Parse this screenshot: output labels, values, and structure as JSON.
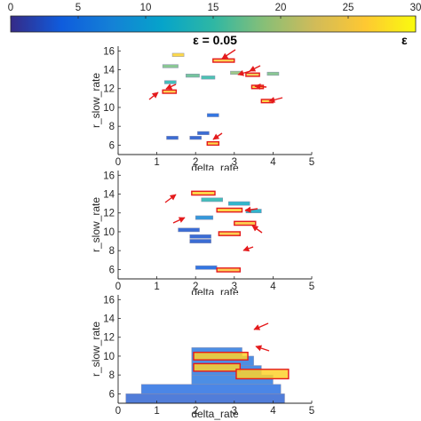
{
  "figure": {
    "colorbar": {
      "ticks": [
        "0",
        "5",
        "10",
        "15",
        "20",
        "25",
        "30"
      ],
      "range": [
        0,
        30
      ],
      "colormap": "parula"
    },
    "titles": [
      "ε = 0.05",
      "ε"
    ],
    "highlight_color": "#e41a1c"
  },
  "chart_data": [
    {
      "type": "heatmap",
      "panel": "row1-col2",
      "title": "ε = 0.05",
      "xlabel": "delta_rate",
      "ylabel": "r_slow_rate",
      "xlim": [
        0,
        5
      ],
      "ylim": [
        5,
        16.5
      ],
      "xticks": [
        "0",
        "1",
        "2",
        "3",
        "4",
        "5"
      ],
      "yticks": [
        "6",
        "8",
        "10",
        "12",
        "14",
        "16"
      ],
      "cells": [
        {
          "x": 1.4,
          "y": 15.4,
          "w": 0.3,
          "h": 0.35,
          "value": 27,
          "highlight": false
        },
        {
          "x": 2.45,
          "y": 14.8,
          "w": 0.55,
          "h": 0.35,
          "value": 26,
          "highlight": true
        },
        {
          "x": 1.15,
          "y": 14.2,
          "w": 0.4,
          "h": 0.35,
          "value": 18,
          "highlight": false
        },
        {
          "x": 1.75,
          "y": 13.2,
          "w": 0.35,
          "h": 0.35,
          "value": 17,
          "highlight": false
        },
        {
          "x": 2.15,
          "y": 13.0,
          "w": 0.35,
          "h": 0.35,
          "value": 15,
          "highlight": false
        },
        {
          "x": 2.9,
          "y": 13.5,
          "w": 0.3,
          "h": 0.35,
          "value": 19,
          "highlight": false
        },
        {
          "x": 3.3,
          "y": 13.3,
          "w": 0.35,
          "h": 0.35,
          "value": 25,
          "highlight": true
        },
        {
          "x": 3.85,
          "y": 13.4,
          "w": 0.3,
          "h": 0.35,
          "value": 18,
          "highlight": false
        },
        {
          "x": 1.2,
          "y": 12.5,
          "w": 0.3,
          "h": 0.35,
          "value": 14,
          "highlight": false
        },
        {
          "x": 3.45,
          "y": 12.0,
          "w": 0.3,
          "h": 0.35,
          "value": 27,
          "highlight": true
        },
        {
          "x": 1.15,
          "y": 11.5,
          "w": 0.35,
          "h": 0.35,
          "value": 26,
          "highlight": true
        },
        {
          "x": 3.7,
          "y": 10.5,
          "w": 0.3,
          "h": 0.35,
          "value": 27,
          "highlight": true
        },
        {
          "x": 2.3,
          "y": 9.0,
          "w": 0.3,
          "h": 0.35,
          "value": 4,
          "highlight": false
        },
        {
          "x": 1.25,
          "y": 6.6,
          "w": 0.3,
          "h": 0.35,
          "value": 3,
          "highlight": false
        },
        {
          "x": 1.85,
          "y": 6.6,
          "w": 0.3,
          "h": 0.35,
          "value": 3,
          "highlight": false
        },
        {
          "x": 2.05,
          "y": 7.1,
          "w": 0.3,
          "h": 0.35,
          "value": 3,
          "highlight": false
        },
        {
          "x": 2.3,
          "y": 6.0,
          "w": 0.3,
          "h": 0.35,
          "value": 27,
          "highlight": true
        }
      ],
      "arrows": 8
    },
    {
      "type": "heatmap",
      "panel": "row2-col2",
      "xlabel": "delta_rate",
      "ylabel": "r_slow_rate",
      "xlim": [
        0,
        5
      ],
      "ylim": [
        5,
        16.5
      ],
      "xticks": [
        "0",
        "1",
        "2",
        "3",
        "4",
        "5"
      ],
      "yticks": [
        "6",
        "8",
        "10",
        "12",
        "14",
        "16"
      ],
      "cells": [
        {
          "x": 1.9,
          "y": 13.9,
          "w": 0.6,
          "h": 0.4,
          "value": 27,
          "highlight": true
        },
        {
          "x": 2.15,
          "y": 13.2,
          "w": 0.55,
          "h": 0.4,
          "value": 14,
          "highlight": false
        },
        {
          "x": 2.85,
          "y": 12.8,
          "w": 0.55,
          "h": 0.4,
          "value": 12,
          "highlight": false
        },
        {
          "x": 2.55,
          "y": 12.1,
          "w": 0.65,
          "h": 0.4,
          "value": 27,
          "highlight": true
        },
        {
          "x": 3.3,
          "y": 12.0,
          "w": 0.4,
          "h": 0.4,
          "value": 12,
          "highlight": false
        },
        {
          "x": 2.0,
          "y": 11.3,
          "w": 0.45,
          "h": 0.4,
          "value": 8,
          "highlight": false
        },
        {
          "x": 3.0,
          "y": 10.7,
          "w": 0.55,
          "h": 0.4,
          "value": 26,
          "highlight": true
        },
        {
          "x": 1.55,
          "y": 10.0,
          "w": 0.55,
          "h": 0.4,
          "value": 3,
          "highlight": false
        },
        {
          "x": 2.6,
          "y": 9.6,
          "w": 0.55,
          "h": 0.4,
          "value": 26,
          "highlight": true
        },
        {
          "x": 1.85,
          "y": 9.3,
          "w": 0.55,
          "h": 0.4,
          "value": 3,
          "highlight": false
        },
        {
          "x": 1.85,
          "y": 8.8,
          "w": 0.55,
          "h": 0.4,
          "value": 3,
          "highlight": false
        },
        {
          "x": 2.0,
          "y": 6.0,
          "w": 0.55,
          "h": 0.4,
          "value": 4,
          "highlight": false
        },
        {
          "x": 2.55,
          "y": 5.75,
          "w": 0.6,
          "h": 0.4,
          "value": 26,
          "highlight": true
        }
      ],
      "arrows": 5
    },
    {
      "type": "heatmap",
      "panel": "row3-col2",
      "xlabel": "delta_rate",
      "ylabel": "r_slow_rate",
      "xlim": [
        0,
        5
      ],
      "ylim": [
        5,
        16.5
      ],
      "xticks": [
        "0",
        "1",
        "2",
        "3",
        "4",
        "5"
      ],
      "yticks": [
        "6",
        "8",
        "10",
        "12",
        "14",
        "16"
      ],
      "cells": [
        {
          "x": 0.2,
          "y": 5.0,
          "w": 4.1,
          "h": 1.0,
          "value": 3,
          "highlight": false
        },
        {
          "x": 0.6,
          "y": 6.0,
          "w": 3.6,
          "h": 1.0,
          "value": 4,
          "highlight": false
        },
        {
          "x": 1.9,
          "y": 7.0,
          "w": 2.1,
          "h": 1.0,
          "value": 5,
          "highlight": false
        },
        {
          "x": 1.9,
          "y": 8.0,
          "w": 1.8,
          "h": 1.0,
          "value": 5,
          "highlight": false
        },
        {
          "x": 1.9,
          "y": 9.0,
          "w": 1.6,
          "h": 1.0,
          "value": 5,
          "highlight": false
        },
        {
          "x": 1.9,
          "y": 10.0,
          "w": 1.3,
          "h": 0.9,
          "value": 5,
          "highlight": false
        },
        {
          "x": 1.95,
          "y": 8.4,
          "w": 1.2,
          "h": 0.8,
          "value": 27,
          "highlight": true
        },
        {
          "x": 3.05,
          "y": 7.6,
          "w": 1.35,
          "h": 1.0,
          "value": 27,
          "highlight": true
        },
        {
          "x": 1.95,
          "y": 9.6,
          "w": 1.4,
          "h": 0.8,
          "value": 27,
          "highlight": true
        }
      ],
      "arrows": 2
    }
  ]
}
